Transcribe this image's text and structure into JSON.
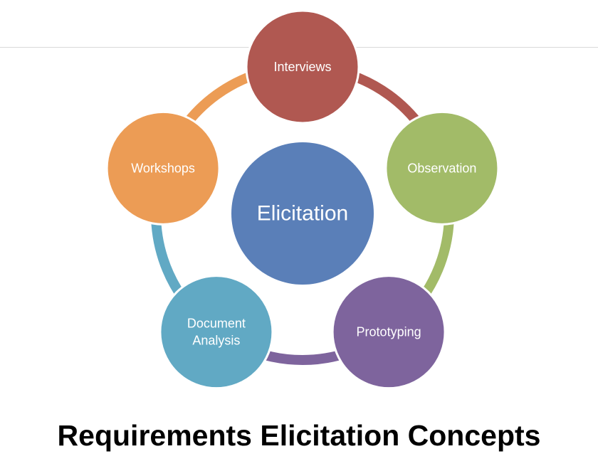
{
  "diagram": {
    "center": {
      "label": "Elicitation",
      "color": "#5A7FB8"
    },
    "nodes": [
      {
        "id": "interviews",
        "lines": [
          "Interviews"
        ],
        "color": "#B05851",
        "connector_color": "#B05851"
      },
      {
        "id": "observation",
        "lines": [
          "Observation"
        ],
        "color": "#A2BB68",
        "connector_color": "#A2BB68"
      },
      {
        "id": "prototyping",
        "lines": [
          "Prototyping"
        ],
        "color": "#7E649D",
        "connector_color": "#7E649D"
      },
      {
        "id": "document-analysis",
        "lines": [
          "Document",
          "Analysis"
        ],
        "color": "#61A9C4",
        "connector_color": "#61A9C4"
      },
      {
        "id": "workshops",
        "lines": [
          "Workshops"
        ],
        "color": "#EC9C55",
        "connector_color": "#EC9C55"
      }
    ]
  },
  "title": "Requirements Elicitation Concepts"
}
